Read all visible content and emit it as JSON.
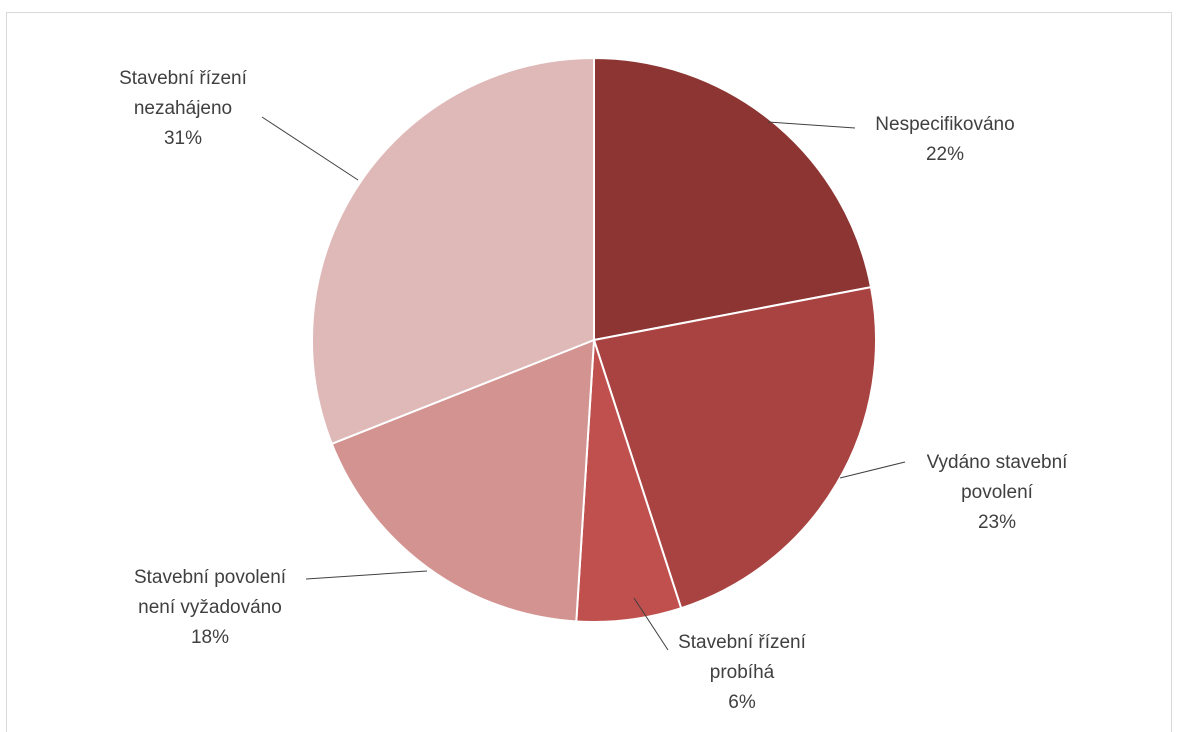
{
  "chart_data": {
    "type": "pie",
    "title": "",
    "legend": "none",
    "slices": [
      {
        "label_lines": [
          "Nespecifikováno"
        ],
        "percent_label": "22%",
        "value": 22,
        "color": "#8c3533"
      },
      {
        "label_lines": [
          "Vydáno stavební",
          "povolení"
        ],
        "percent_label": "23%",
        "value": 23,
        "color": "#a94341"
      },
      {
        "label_lines": [
          "Stavební řízení",
          "probíhá"
        ],
        "percent_label": "6%",
        "value": 6,
        "color": "#c0504d"
      },
      {
        "label_lines": [
          "Stavební povolení",
          "není vyžadováno"
        ],
        "percent_label": "18%",
        "value": 18,
        "color": "#d39391"
      },
      {
        "label_lines": [
          "Stavební řízení",
          "nezahájeno"
        ],
        "percent_label": "31%",
        "value": 31,
        "color": "#dfb8b8"
      }
    ]
  }
}
